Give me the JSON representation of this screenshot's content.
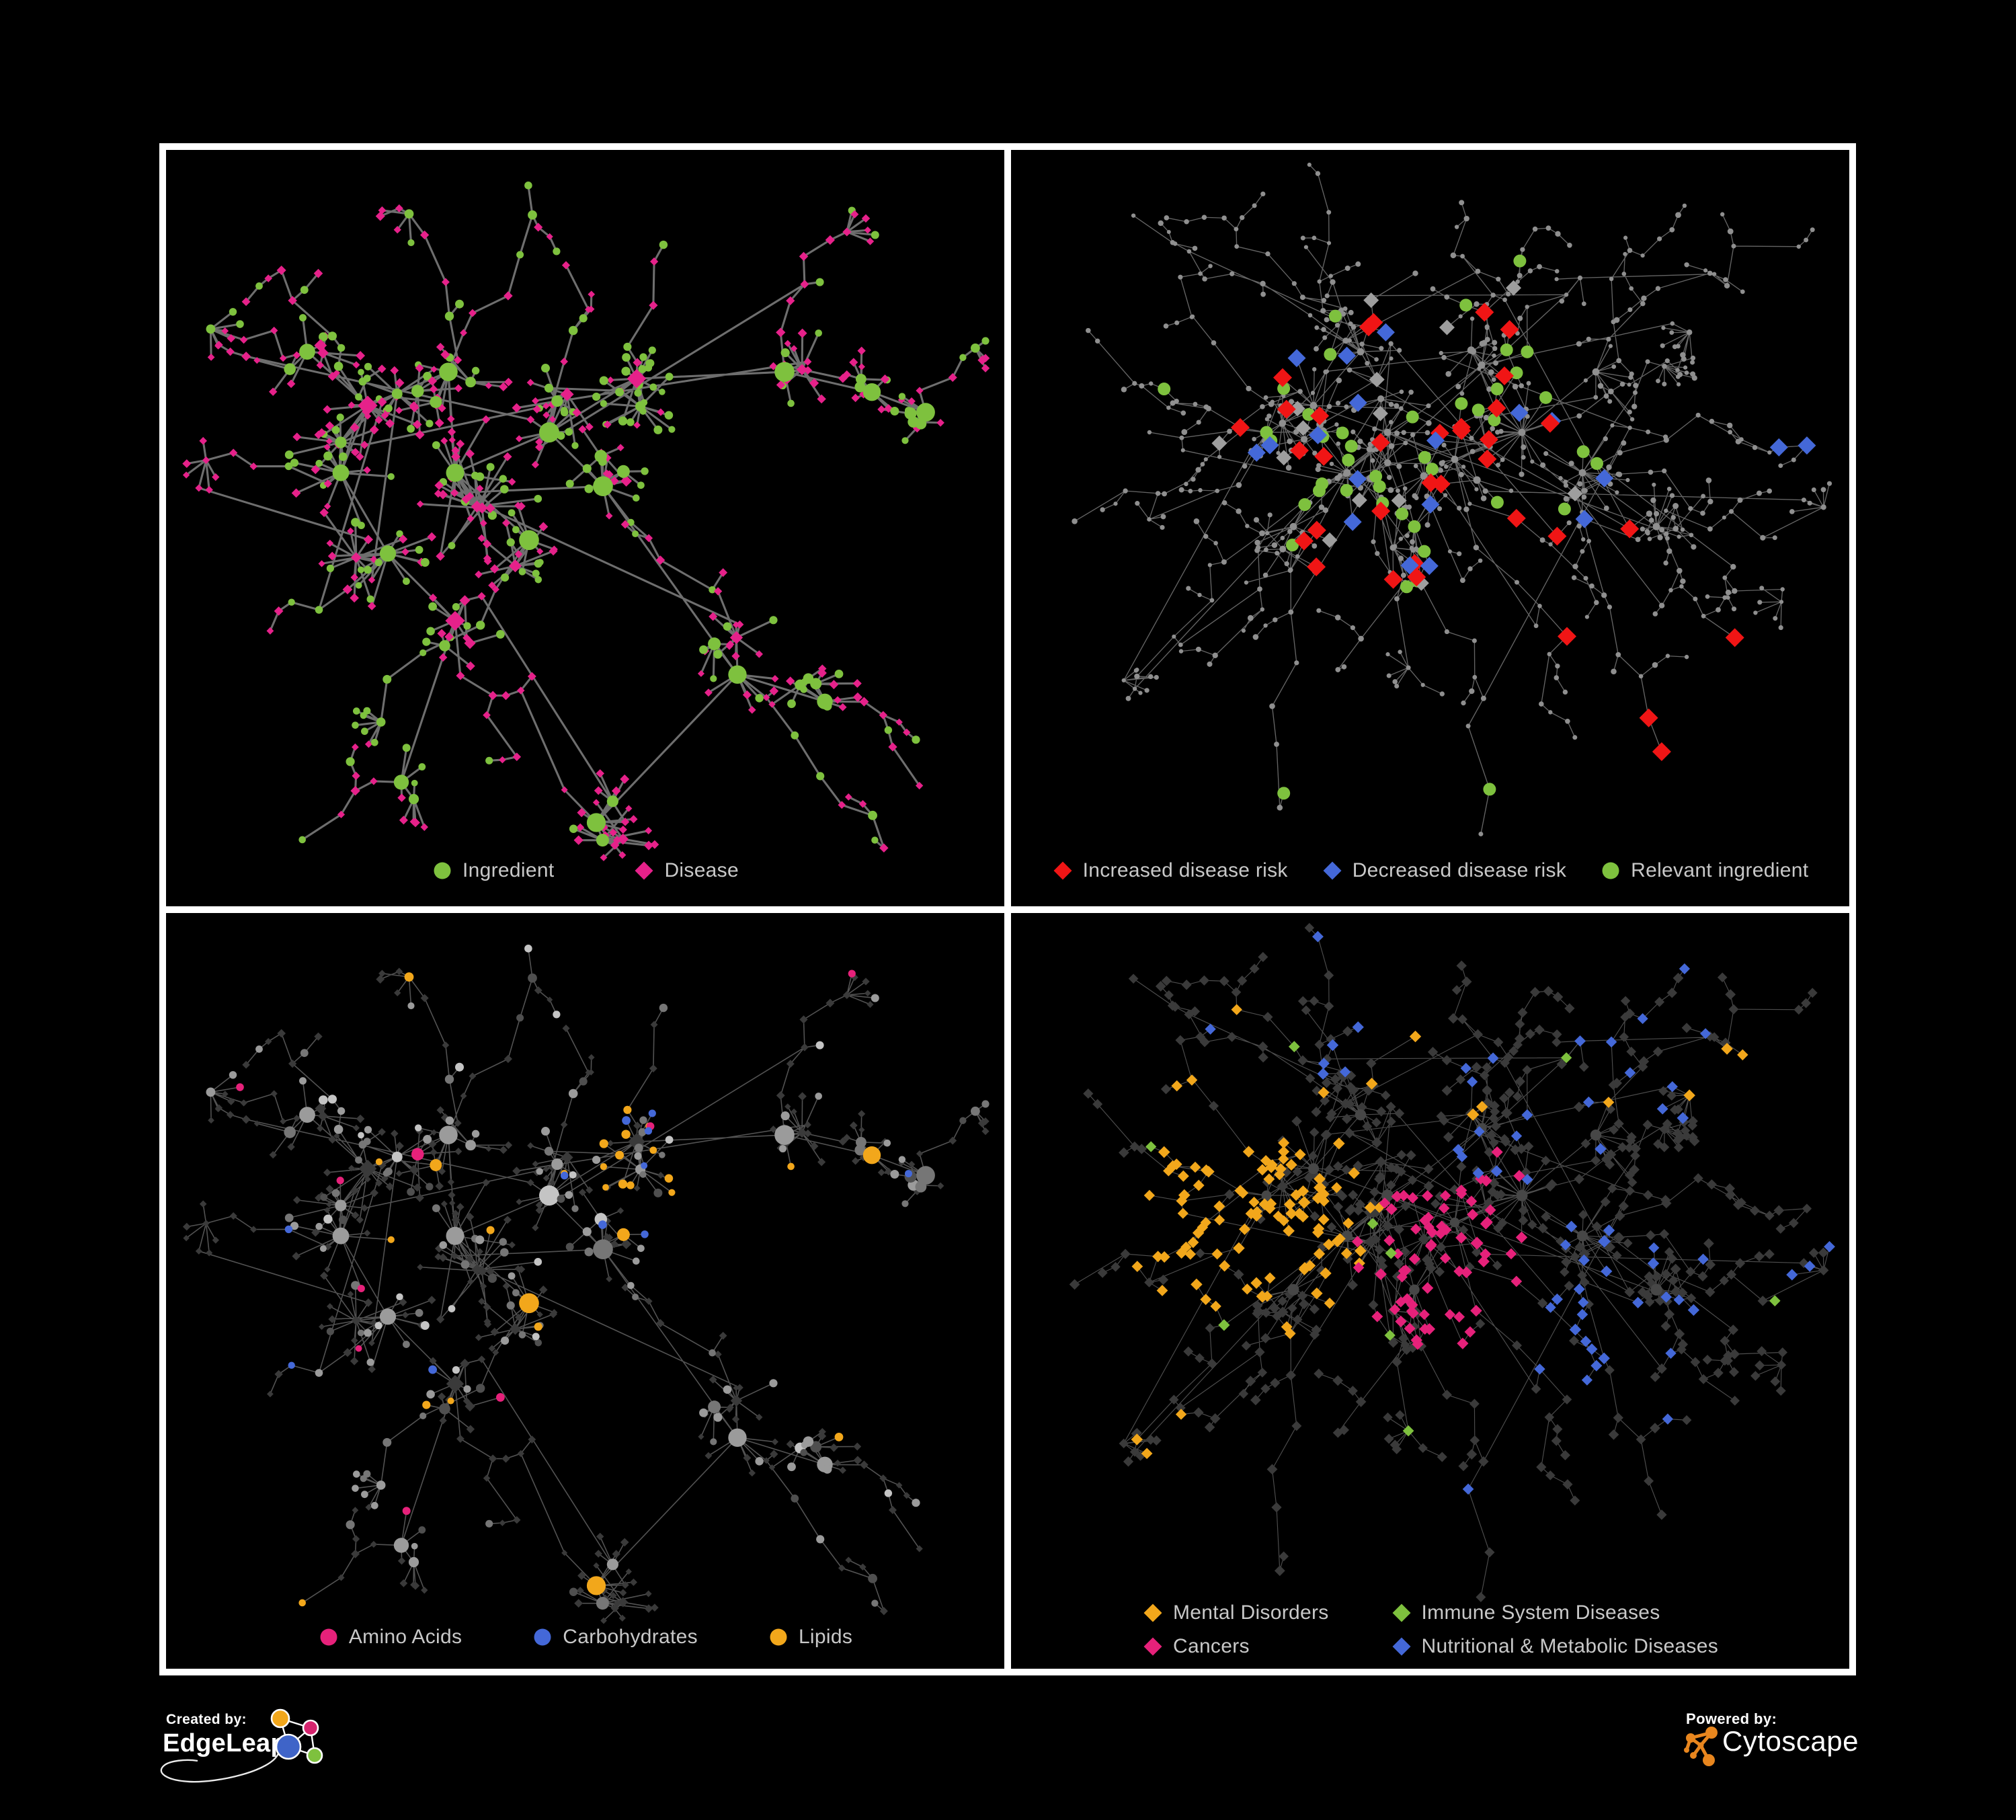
{
  "page": {
    "background": "#000000",
    "frame_color": "#ffffff"
  },
  "palette": {
    "green": "#7ec13e",
    "pink": "#e6218a",
    "red": "#f01515",
    "blue": "#4468d8",
    "orange": "#f2a71b",
    "magenta": "#e6217a",
    "dot_gray": "#8f8f8f",
    "diamond_gray": "#9e9e9e",
    "diamond_dark": "#3a3a3a",
    "hub_dark": "#474747",
    "circle_gray_light": "#c4c4c4",
    "circle_gray": "#9b9b9b",
    "circle_gray_mid": "#767676",
    "circle_gray_dark": "#4f4f4f",
    "edge_p1": "#747474",
    "edge_p2": "#6f6f6f",
    "edge_p3": "#606060",
    "edge_p4": "#9a9a9a",
    "legend_text": "#c8c8c8"
  },
  "panels": [
    {
      "name": "ingredient-disease-network",
      "legend_items": [
        {
          "shape": "circle",
          "color": "#7ec13e",
          "label": "Ingredient"
        },
        {
          "shape": "diamond",
          "color": "#e6218a",
          "label": "Disease"
        }
      ]
    },
    {
      "name": "disease-risk-network",
      "legend_items": [
        {
          "shape": "diamond",
          "color": "#f01515",
          "label": "Increased disease risk"
        },
        {
          "shape": "diamond",
          "color": "#4468d8",
          "label": "Decreased disease risk"
        },
        {
          "shape": "circle",
          "color": "#7ec13e",
          "label": "Relevant ingredient"
        }
      ]
    },
    {
      "name": "nutrient-class-network",
      "legend_items": [
        {
          "shape": "circle",
          "color": "#e6217a",
          "label": "Amino Acids"
        },
        {
          "shape": "circle",
          "color": "#4468d8",
          "label": "Carbohydrates"
        },
        {
          "shape": "circle",
          "color": "#f2a71b",
          "label": "Lipids"
        }
      ]
    },
    {
      "name": "disease-class-network",
      "legend_items": [
        {
          "shape": "diamond",
          "color": "#f2a71b",
          "label": "Mental Disorders"
        },
        {
          "shape": "diamond",
          "color": "#7ec13e",
          "label": "Immune System Diseases"
        },
        {
          "shape": "diamond",
          "color": "#e6217a",
          "label": "Cancers"
        },
        {
          "shape": "diamond",
          "color": "#4468d8",
          "label": "Nutritional & Metabolic Diseases"
        }
      ]
    }
  ],
  "footer": {
    "created_by_label": "Created by:",
    "created_by_name": "EdgeLeap",
    "powered_by_label": "Powered by:",
    "powered_by_name": "Cytoscape"
  }
}
